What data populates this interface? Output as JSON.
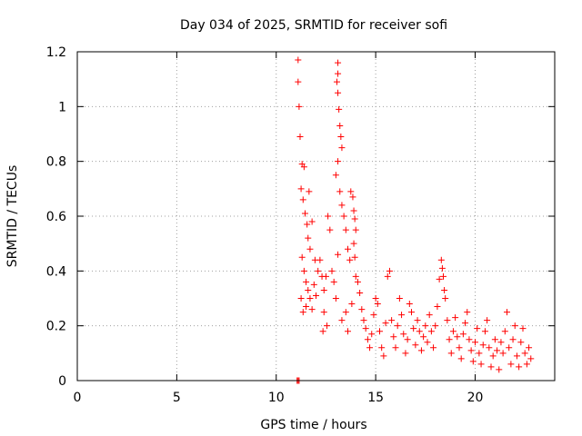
{
  "chart_data": {
    "type": "scatter",
    "title": "Day 034 of 2025, SRMTID for receiver sofi",
    "xlabel": "GPS time / hours",
    "ylabel": "SRMTID / TECUs",
    "xlim": [
      0,
      24
    ],
    "ylim": [
      0,
      1.2
    ],
    "xticks": [
      0,
      5,
      10,
      15,
      20
    ],
    "yticks": [
      0,
      0.2,
      0.4,
      0.6,
      0.8,
      1,
      1.2
    ],
    "xtick_labels": [
      "0",
      "5",
      "10",
      "15",
      "20"
    ],
    "ytick_labels": [
      "0",
      "0.2",
      "0.4",
      "0.6",
      "0.8",
      "1",
      "1.2"
    ],
    "grid": true,
    "marker": "+",
    "series": [
      {
        "name": "SRMTID",
        "color": "#ff0000",
        "x_range": [
          11.05,
          22.85
        ],
        "points": [
          [
            11.1,
            1.17
          ],
          [
            11.1,
            1.09
          ],
          [
            11.15,
            1.0
          ],
          [
            11.2,
            0.89
          ],
          [
            11.3,
            0.79
          ],
          [
            11.4,
            0.78
          ],
          [
            11.25,
            0.7
          ],
          [
            11.35,
            0.66
          ],
          [
            11.45,
            0.61
          ],
          [
            11.55,
            0.57
          ],
          [
            11.6,
            0.52
          ],
          [
            11.7,
            0.48
          ],
          [
            11.3,
            0.45
          ],
          [
            11.4,
            0.4
          ],
          [
            11.5,
            0.36
          ],
          [
            11.6,
            0.33
          ],
          [
            11.7,
            0.3
          ],
          [
            11.25,
            0.3
          ],
          [
            11.35,
            0.25
          ],
          [
            11.5,
            0.27
          ],
          [
            11.8,
            0.26
          ],
          [
            11.9,
            0.35
          ],
          [
            12.0,
            0.31
          ],
          [
            12.1,
            0.4
          ],
          [
            12.2,
            0.44
          ],
          [
            12.3,
            0.38
          ],
          [
            12.4,
            0.33
          ],
          [
            12.5,
            0.38
          ],
          [
            12.6,
            0.6
          ],
          [
            12.7,
            0.55
          ],
          [
            12.8,
            0.4
          ],
          [
            12.9,
            0.36
          ],
          [
            13.0,
            0.3
          ],
          [
            13.1,
            0.46
          ],
          [
            12.4,
            0.25
          ],
          [
            12.55,
            0.2
          ],
          [
            12.35,
            0.18
          ],
          [
            11.8,
            0.58
          ],
          [
            11.65,
            0.69
          ],
          [
            11.95,
            0.44
          ],
          [
            13.1,
            1.16
          ],
          [
            13.1,
            1.12
          ],
          [
            13.05,
            1.09
          ],
          [
            13.1,
            1.05
          ],
          [
            13.15,
            0.99
          ],
          [
            13.2,
            0.93
          ],
          [
            13.25,
            0.89
          ],
          [
            13.3,
            0.85
          ],
          [
            13.0,
            0.75
          ],
          [
            13.1,
            0.8
          ],
          [
            13.2,
            0.69
          ],
          [
            13.3,
            0.64
          ],
          [
            13.4,
            0.6
          ],
          [
            13.5,
            0.55
          ],
          [
            13.6,
            0.48
          ],
          [
            13.7,
            0.44
          ],
          [
            13.75,
            0.69
          ],
          [
            13.85,
            0.67
          ],
          [
            13.9,
            0.5
          ],
          [
            13.95,
            0.45
          ],
          [
            14.0,
            0.38
          ],
          [
            14.1,
            0.36
          ],
          [
            13.9,
            0.62
          ],
          [
            13.95,
            0.59
          ],
          [
            14.0,
            0.55
          ],
          [
            13.8,
            0.28
          ],
          [
            13.5,
            0.25
          ],
          [
            13.3,
            0.22
          ],
          [
            13.6,
            0.18
          ],
          [
            14.2,
            0.32
          ],
          [
            14.3,
            0.26
          ],
          [
            14.4,
            0.22
          ],
          [
            14.5,
            0.19
          ],
          [
            14.6,
            0.15
          ],
          [
            14.7,
            0.12
          ],
          [
            14.8,
            0.17
          ],
          [
            14.9,
            0.24
          ],
          [
            15.0,
            0.3
          ],
          [
            15.1,
            0.28
          ],
          [
            15.2,
            0.18
          ],
          [
            15.3,
            0.12
          ],
          [
            15.4,
            0.09
          ],
          [
            15.5,
            0.21
          ],
          [
            15.6,
            0.38
          ],
          [
            15.7,
            0.4
          ],
          [
            15.8,
            0.22
          ],
          [
            15.9,
            0.16
          ],
          [
            16.0,
            0.12
          ],
          [
            16.1,
            0.2
          ],
          [
            16.2,
            0.3
          ],
          [
            16.3,
            0.24
          ],
          [
            16.4,
            0.17
          ],
          [
            16.5,
            0.1
          ],
          [
            16.6,
            0.15
          ],
          [
            16.7,
            0.28
          ],
          [
            16.8,
            0.25
          ],
          [
            16.9,
            0.19
          ],
          [
            17.0,
            0.13
          ],
          [
            17.1,
            0.22
          ],
          [
            17.2,
            0.18
          ],
          [
            17.3,
            0.11
          ],
          [
            17.4,
            0.16
          ],
          [
            17.5,
            0.2
          ],
          [
            17.6,
            0.14
          ],
          [
            17.7,
            0.24
          ],
          [
            17.8,
            0.18
          ],
          [
            17.9,
            0.12
          ],
          [
            18.0,
            0.2
          ],
          [
            18.1,
            0.27
          ],
          [
            18.2,
            0.37
          ],
          [
            18.3,
            0.44
          ],
          [
            18.35,
            0.41
          ],
          [
            18.4,
            0.38
          ],
          [
            18.45,
            0.33
          ],
          [
            18.5,
            0.3
          ],
          [
            18.6,
            0.22
          ],
          [
            18.7,
            0.15
          ],
          [
            18.8,
            0.1
          ],
          [
            18.9,
            0.18
          ],
          [
            19.0,
            0.23
          ],
          [
            19.1,
            0.16
          ],
          [
            19.2,
            0.12
          ],
          [
            19.3,
            0.08
          ],
          [
            19.4,
            0.17
          ],
          [
            19.5,
            0.21
          ],
          [
            19.6,
            0.25
          ],
          [
            19.7,
            0.15
          ],
          [
            19.8,
            0.11
          ],
          [
            19.9,
            0.07
          ],
          [
            20.0,
            0.14
          ],
          [
            20.1,
            0.19
          ],
          [
            20.2,
            0.1
          ],
          [
            20.3,
            0.06
          ],
          [
            20.4,
            0.13
          ],
          [
            20.5,
            0.18
          ],
          [
            20.6,
            0.22
          ],
          [
            20.7,
            0.12
          ],
          [
            20.8,
            0.05
          ],
          [
            20.9,
            0.09
          ],
          [
            21.0,
            0.15
          ],
          [
            21.1,
            0.11
          ],
          [
            21.2,
            0.04
          ],
          [
            21.3,
            0.14
          ],
          [
            21.4,
            0.1
          ],
          [
            21.5,
            0.18
          ],
          [
            21.6,
            0.25
          ],
          [
            21.7,
            0.12
          ],
          [
            21.8,
            0.06
          ],
          [
            21.9,
            0.15
          ],
          [
            22.0,
            0.2
          ],
          [
            22.1,
            0.09
          ],
          [
            22.2,
            0.05
          ],
          [
            22.3,
            0.14
          ],
          [
            22.4,
            0.19
          ],
          [
            22.5,
            0.1
          ],
          [
            22.6,
            0.06
          ],
          [
            22.7,
            0.12
          ],
          [
            22.8,
            0.08
          ],
          [
            11.05,
            0.0
          ],
          [
            11.1,
            0.0
          ],
          [
            11.15,
            0.0
          ]
        ]
      }
    ]
  }
}
